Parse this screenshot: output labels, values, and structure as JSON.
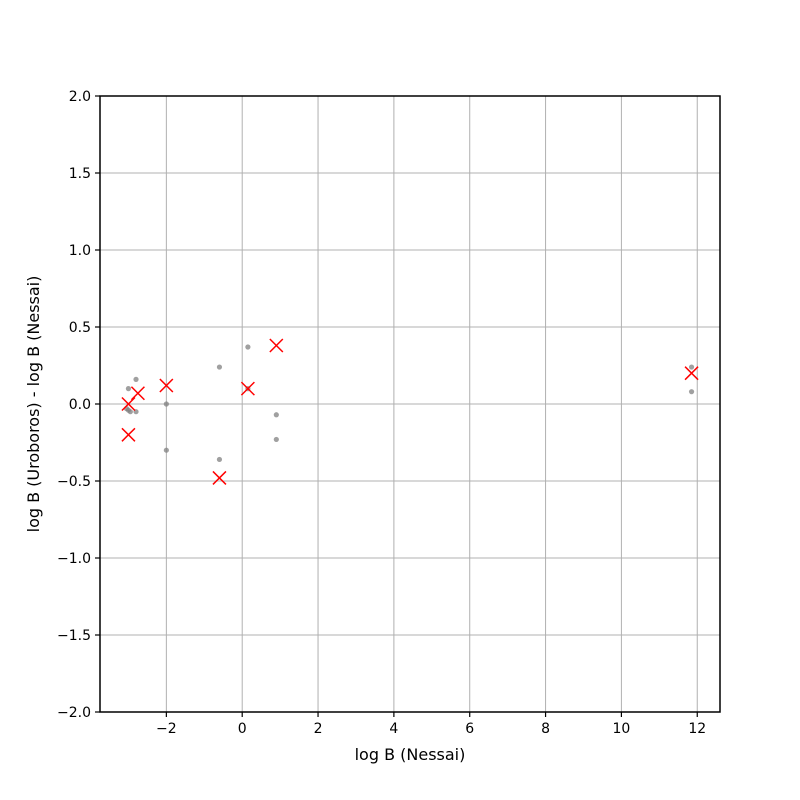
{
  "chart_data": {
    "type": "scatter",
    "title": "",
    "xlabel": "log B (Nessai)",
    "ylabel": "log B (Uroboros) - log B (Nessai)",
    "xlim": [
      -3.75,
      12.6
    ],
    "ylim": [
      -2.0,
      2.0
    ],
    "xticks": [
      -2,
      0,
      2,
      4,
      6,
      8,
      10,
      12
    ],
    "yticks": [
      -2.0,
      -1.5,
      -1.0,
      -0.5,
      0.0,
      0.5,
      1.0,
      1.5,
      2.0
    ],
    "xtick_labels": [
      "−2",
      "0",
      "2",
      "4",
      "6",
      "8",
      "10",
      "12"
    ],
    "ytick_labels": [
      "−2.0",
      "−1.5",
      "−1.0",
      "−0.5",
      "0.0",
      "0.5",
      "1.0",
      "1.5",
      "2.0"
    ],
    "grid": true,
    "series": [
      {
        "marker": "dot",
        "color": "#808080",
        "points": [
          {
            "x": -3.0,
            "y": 0.1
          },
          {
            "x": -3.0,
            "y": -0.04
          },
          {
            "x": -2.95,
            "y": -0.05
          },
          {
            "x": -3.05,
            "y": -0.03
          },
          {
            "x": -2.8,
            "y": 0.16
          },
          {
            "x": -2.8,
            "y": -0.05
          },
          {
            "x": -2.0,
            "y": 0.0
          },
          {
            "x": -2.0,
            "y": -0.3
          },
          {
            "x": -0.6,
            "y": 0.24
          },
          {
            "x": -0.6,
            "y": -0.36
          },
          {
            "x": 0.15,
            "y": 0.37
          },
          {
            "x": 0.15,
            "y": 0.1
          },
          {
            "x": 0.9,
            "y": -0.07
          },
          {
            "x": 0.9,
            "y": -0.23
          },
          {
            "x": 11.85,
            "y": 0.24
          },
          {
            "x": 11.85,
            "y": 0.08
          }
        ]
      },
      {
        "marker": "x",
        "color": "#ff0000",
        "points": [
          {
            "x": -3.0,
            "y": 0.0
          },
          {
            "x": -3.0,
            "y": -0.2
          },
          {
            "x": -2.75,
            "y": 0.07
          },
          {
            "x": -2.0,
            "y": 0.12
          },
          {
            "x": -0.6,
            "y": -0.48
          },
          {
            "x": 0.15,
            "y": 0.1
          },
          {
            "x": 0.9,
            "y": 0.38
          },
          {
            "x": 11.85,
            "y": 0.2
          }
        ]
      }
    ]
  }
}
